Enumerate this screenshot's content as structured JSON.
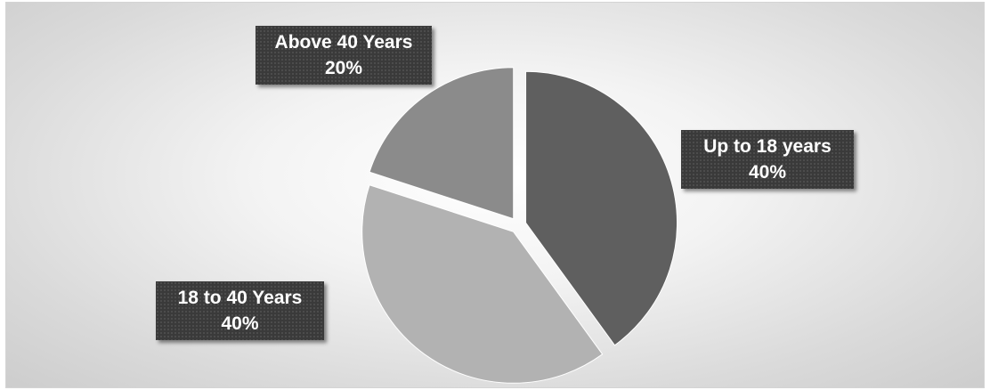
{
  "chart_data": {
    "type": "pie",
    "categories": [
      "Up to 18 years",
      "18 to 40 Years",
      "Above 40 Years"
    ],
    "values": [
      40,
      40,
      20
    ],
    "unit": "%",
    "colors": [
      "#5f5f5f",
      "#b2b2b2",
      "#8b8b8b"
    ],
    "exploded": true,
    "legend": "none",
    "data_labels": [
      {
        "category": "Up to 18 years",
        "value": "40%"
      },
      {
        "category": "18 to 40 Years",
        "value": "40%"
      },
      {
        "category": "Above 40 Years",
        "value": "20%"
      }
    ]
  }
}
